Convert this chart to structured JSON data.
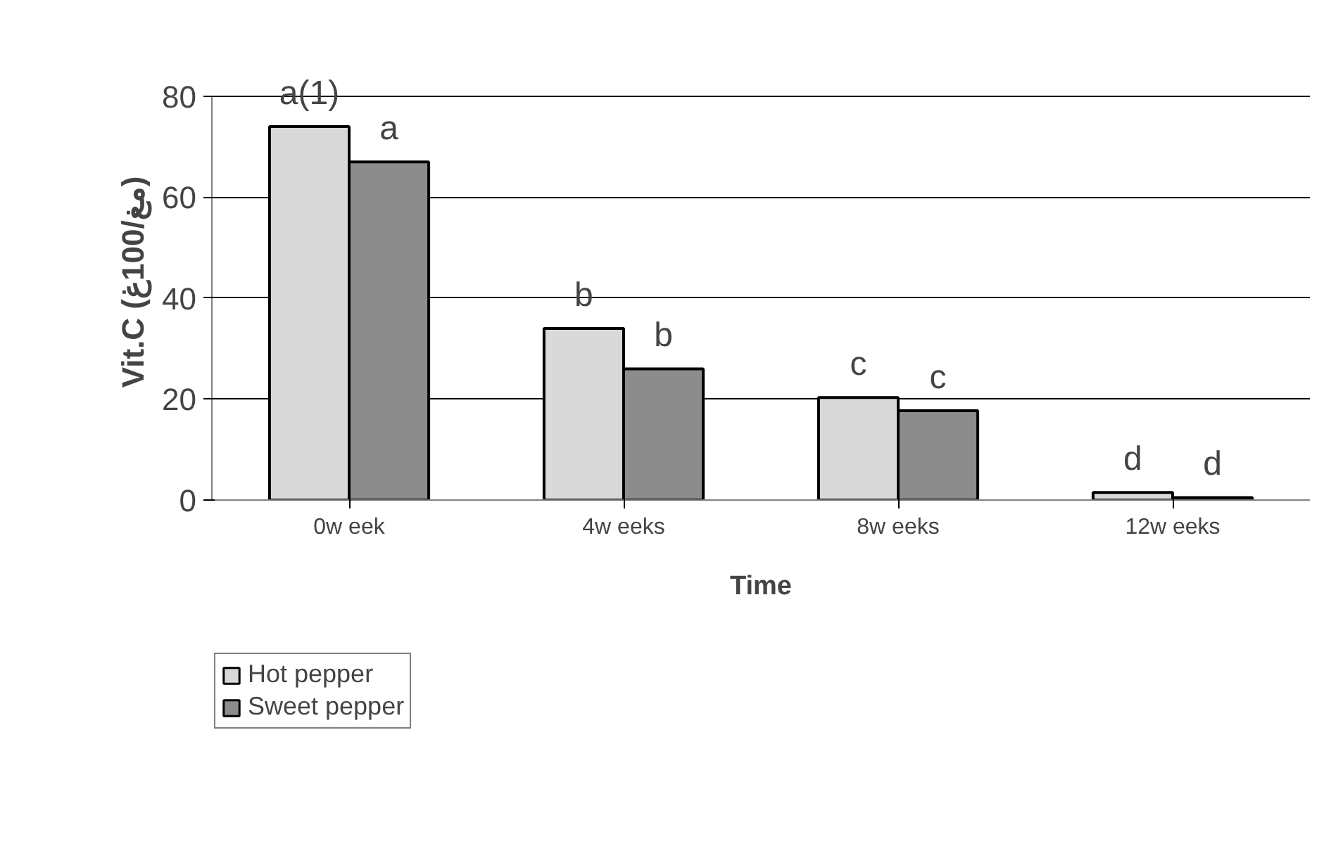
{
  "chart_data": {
    "type": "bar",
    "xlabel": "Time",
    "ylabel": "Vit.C (مغ/100غ)",
    "categories": [
      "0w eek",
      "4w eeks",
      "8w eeks",
      "12w eeks"
    ],
    "series": [
      {
        "name": "Hot pepper",
        "color": "#d9d9d9",
        "values": [
          74,
          34,
          20.3,
          1.5
        ],
        "value_labels": [
          "a(1)",
          "b",
          "c",
          "d"
        ]
      },
      {
        "name": "Sweet pepper",
        "color": "#8c8c8c",
        "values": [
          67,
          26,
          17.7,
          0.5
        ],
        "value_labels": [
          "a",
          "b",
          "c",
          "d"
        ]
      }
    ],
    "ylim": [
      0,
      80
    ],
    "yticks": [
      0,
      20,
      40,
      60,
      80
    ],
    "grid": "y",
    "legend": "bottom left"
  }
}
